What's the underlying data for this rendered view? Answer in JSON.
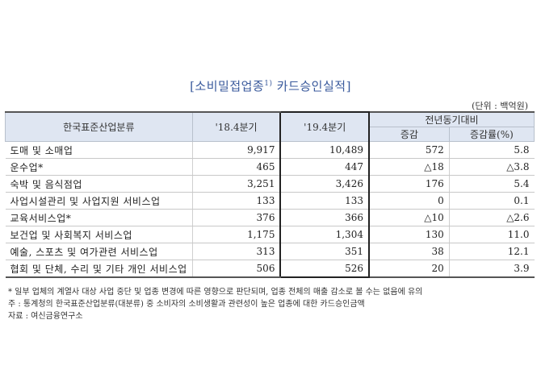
{
  "title": {
    "main": "[소비밀접업종",
    "sup": "1)",
    "rest": "카드승인실적]"
  },
  "unit": "(단위 : 백억원)",
  "headers": {
    "category": "한국표준산업분류",
    "q2018": "'18.4분기",
    "q2019": "'19.4분기",
    "yoy": "전년동기대비",
    "change": "증감",
    "rate": "증감률(%)"
  },
  "rows": [
    {
      "name": "도매 및 소매업",
      "q2018": "9,917",
      "q2019": "10,489",
      "change": "572",
      "rate": "5.8"
    },
    {
      "name": "운수업*",
      "q2018": "465",
      "q2019": "447",
      "change": "△18",
      "rate": "△3.8"
    },
    {
      "name": "숙박 및 음식점업",
      "q2018": "3,251",
      "q2019": "3,426",
      "change": "176",
      "rate": "5.4"
    },
    {
      "name": "사업시설관리 및 사업지원 서비스업",
      "q2018": "133",
      "q2019": "133",
      "change": "0",
      "rate": "0.1"
    },
    {
      "name": "교육서비스업*",
      "q2018": "376",
      "q2019": "366",
      "change": "△10",
      "rate": "△2.6"
    },
    {
      "name": "보건업 및 사회복지 서비스업",
      "q2018": "1,175",
      "q2019": "1,304",
      "change": "130",
      "rate": "11.0"
    },
    {
      "name": "예술, 스포츠 및 여가관련 서비스업",
      "q2018": "313",
      "q2019": "351",
      "change": "38",
      "rate": "12.1"
    },
    {
      "name": "협회 및 단체, 수리 및 기타 개인 서비스업",
      "q2018": "506",
      "q2019": "526",
      "change": "20",
      "rate": "3.9"
    }
  ],
  "notes": {
    "n1": "* 일부 업체의 계열사 대상 사업 중단 및 업종 변경에 따른 영향으로 판단되며, 업종 전체의 매출 감소로 볼 수는 없음에 유의",
    "n2": "주 : 통계청의 한국표준산업분류(대분류) 중 소비자의 소비생활과 관련성이 높은 업종에 대한 카드승인금액",
    "n3": "자료 : 여신금융연구소"
  }
}
